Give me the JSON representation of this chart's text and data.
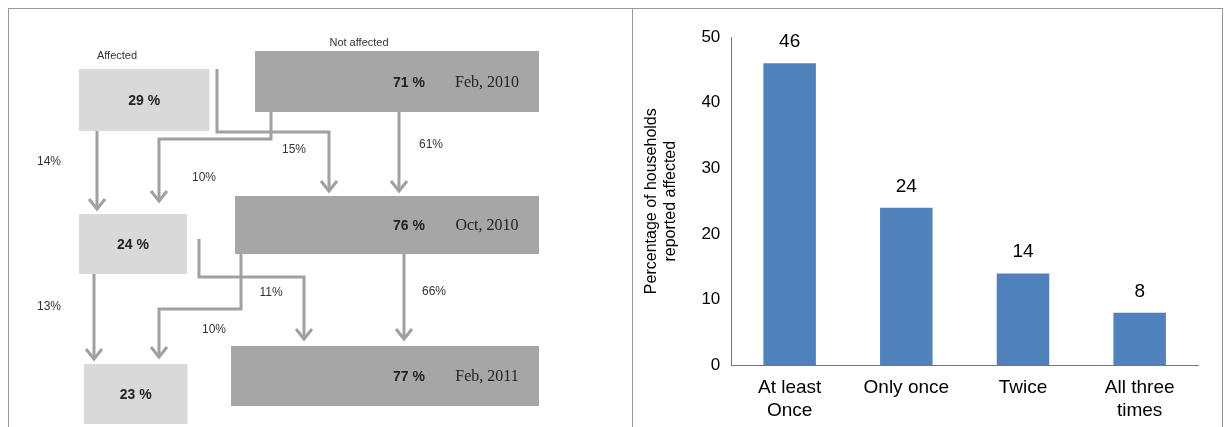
{
  "chart_data": [
    {
      "type": "other",
      "categories": [
        "Feb, 2010",
        "Oct, 2010",
        "Feb, 2011"
      ],
      "series": [
        {
          "name": "Affected",
          "color": "#d9d9d9",
          "values": [
            29,
            24,
            23
          ],
          "value_labels": [
            "29 %",
            "24 %",
            "23 %"
          ]
        },
        {
          "name": "Not affected",
          "color": "#a6a6a6",
          "values": [
            71,
            76,
            77
          ],
          "value_labels": [
            "71 %",
            "76 %",
            "77 %"
          ]
        }
      ],
      "annotations": [
        "14%",
        "10%",
        "15%",
        "61%",
        "13%",
        "10%",
        "11%",
        "66%"
      ]
    },
    {
      "type": "bar",
      "categories": [
        "At least Once",
        "Only once",
        "Twice",
        "All three times"
      ],
      "values": [
        46,
        24,
        14,
        8
      ],
      "color": "#4f81bd",
      "ylabel": "Percentage of households reported affected",
      "ylim": [
        0,
        50
      ],
      "yticks": [
        0,
        10,
        20,
        30,
        40,
        50
      ],
      "data_labels": true
    }
  ]
}
